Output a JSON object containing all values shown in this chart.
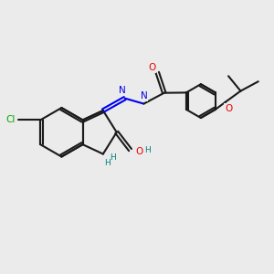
{
  "bg_color": "#ebebeb",
  "bond_color": "#1a1a1a",
  "N_color": "#0000ee",
  "O_color": "#ee0000",
  "Cl_color": "#00aa00",
  "H_color": "#008080",
  "lw": 1.5,
  "dbo": 0.055,
  "xlim": [
    0,
    10
  ],
  "ylim": [
    0,
    10
  ]
}
